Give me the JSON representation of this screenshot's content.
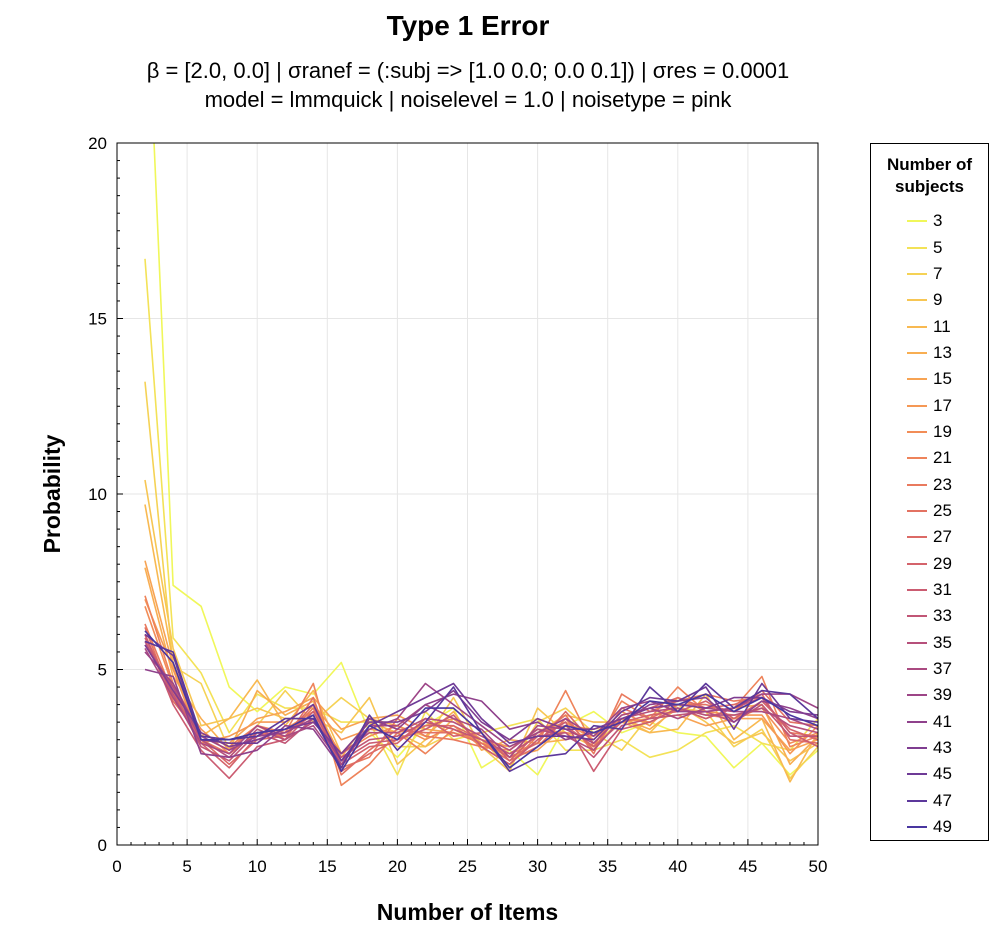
{
  "chart_data": {
    "type": "line",
    "title": "Type 1 Error",
    "subtitle_lines": [
      "β = [2.0, 0.0]   |   σranef = (:subj => [1.0 0.0; 0.0 0.1])   |   σres = 0.0001",
      "model = lmmquick   |   noiselevel = 1.0   |   noisetype = pink"
    ],
    "xlabel": "Number of Items",
    "ylabel": "Probability",
    "xlim": [
      0,
      50
    ],
    "ylim": [
      0,
      20
    ],
    "xticks": [
      0,
      5,
      10,
      15,
      20,
      25,
      30,
      35,
      40,
      45,
      50
    ],
    "yticks": [
      0,
      5,
      10,
      15,
      20
    ],
    "grid": true,
    "legend_title": "Number of subjects",
    "legend_position": "right",
    "x": [
      2,
      4,
      6,
      8,
      10,
      12,
      14,
      16,
      18,
      20,
      22,
      24,
      26,
      28,
      30,
      32,
      34,
      36,
      38,
      40,
      42,
      44,
      46,
      48,
      50
    ],
    "series": [
      {
        "name": "3",
        "color": "#f0f75a",
        "values": [
          26.0,
          7.4,
          6.8,
          4.5,
          3.8,
          4.5,
          4.3,
          5.2,
          3.2,
          2.5,
          3.4,
          3.9,
          2.2,
          2.7,
          2.0,
          3.4,
          3.8,
          3.2,
          3.5,
          3.2,
          3.1,
          2.2,
          2.9,
          2.0,
          2.7
        ]
      },
      {
        "name": "5",
        "color": "#f3e257",
        "values": [
          16.7,
          5.9,
          4.9,
          3.2,
          4.3,
          3.9,
          3.9,
          3.5,
          3.5,
          2.0,
          3.8,
          3.0,
          3.2,
          3.4,
          3.6,
          2.7,
          2.7,
          3.0,
          2.5,
          2.7,
          3.2,
          3.4,
          2.9,
          2.7,
          3.6
        ]
      },
      {
        "name": "7",
        "color": "#f5d255",
        "values": [
          13.2,
          5.1,
          4.6,
          2.7,
          3.4,
          4.4,
          3.5,
          4.2,
          3.6,
          2.8,
          2.8,
          3.2,
          3.0,
          2.2,
          3.5,
          3.9,
          3.2,
          2.7,
          3.7,
          3.9,
          3.8,
          2.8,
          3.3,
          1.9,
          2.8
        ]
      },
      {
        "name": "9",
        "color": "#f7c653",
        "values": [
          10.4,
          5.6,
          3.4,
          3.6,
          3.9,
          3.6,
          3.6,
          3.2,
          4.2,
          2.3,
          3.0,
          4.2,
          2.8,
          2.1,
          3.9,
          3.2,
          2.8,
          3.6,
          3.2,
          4.0,
          3.5,
          2.9,
          3.2,
          2.4,
          2.9
        ]
      },
      {
        "name": "11",
        "color": "#f8b951",
        "values": [
          9.7,
          5.2,
          3.1,
          3.6,
          4.7,
          3.4,
          4.4,
          2.6,
          3.5,
          3.2,
          2.8,
          3.6,
          2.9,
          2.8,
          3.2,
          3.7,
          3.5,
          3.5,
          3.2,
          3.3,
          4.3,
          3.0,
          3.6,
          1.8,
          3.2
        ]
      },
      {
        "name": "13",
        "color": "#f8ae52",
        "values": [
          7.9,
          4.8,
          3.6,
          2.7,
          4.4,
          3.7,
          4.1,
          2.5,
          3.6,
          3.4,
          3.1,
          3.8,
          2.7,
          3.0,
          2.9,
          3.0,
          3.2,
          3.6,
          3.3,
          3.9,
          3.6,
          3.9,
          4.0,
          2.3,
          3.1
        ]
      },
      {
        "name": "15",
        "color": "#f7a353",
        "values": [
          8.1,
          5.1,
          3.0,
          2.9,
          3.6,
          3.8,
          4.2,
          3.3,
          3.6,
          3.7,
          3.3,
          3.2,
          2.9,
          2.5,
          2.7,
          3.4,
          3.3,
          3.5,
          3.6,
          3.7,
          3.4,
          3.6,
          3.6,
          2.7,
          3.0
        ]
      },
      {
        "name": "17",
        "color": "#f59855",
        "values": [
          7.0,
          5.0,
          2.9,
          3.1,
          3.5,
          3.5,
          4.0,
          3.0,
          3.3,
          3.2,
          3.4,
          3.6,
          3.0,
          2.8,
          3.2,
          3.5,
          3.0,
          3.8,
          3.4,
          4.2,
          3.8,
          3.7,
          3.7,
          2.6,
          3.4
        ]
      },
      {
        "name": "19",
        "color": "#f28d57",
        "values": [
          6.8,
          4.5,
          3.3,
          2.6,
          3.2,
          3.3,
          3.8,
          2.6,
          3.1,
          3.4,
          3.0,
          3.4,
          2.8,
          2.7,
          3.3,
          3.2,
          3.1,
          3.6,
          3.5,
          3.9,
          3.7,
          3.6,
          3.9,
          2.9,
          3.2
        ]
      },
      {
        "name": "21",
        "color": "#ee835a",
        "values": [
          7.1,
          4.6,
          3.2,
          2.8,
          3.4,
          3.2,
          4.6,
          1.7,
          2.3,
          3.2,
          2.6,
          3.3,
          2.9,
          2.6,
          2.9,
          4.4,
          2.8,
          4.1,
          3.6,
          4.5,
          3.8,
          3.9,
          4.8,
          2.8,
          3.1
        ]
      },
      {
        "name": "23",
        "color": "#e97a5e",
        "values": [
          6.3,
          4.3,
          3.0,
          2.6,
          3.2,
          3.1,
          3.9,
          2.2,
          2.5,
          3.6,
          3.1,
          3.0,
          2.8,
          2.3,
          3.1,
          3.7,
          2.6,
          4.3,
          3.8,
          4.1,
          4.3,
          4.1,
          4.2,
          3.2,
          3.1
        ]
      },
      {
        "name": "25",
        "color": "#e37262",
        "values": [
          6.2,
          4.1,
          3.1,
          2.7,
          3.4,
          3.0,
          4.2,
          2.0,
          2.7,
          3.3,
          3.2,
          3.2,
          2.9,
          2.4,
          2.8,
          3.6,
          2.7,
          3.9,
          3.6,
          4.0,
          4.0,
          3.8,
          4.4,
          3.5,
          3.4
        ]
      },
      {
        "name": "27",
        "color": "#dc6a66",
        "values": [
          6.0,
          4.2,
          3.0,
          2.3,
          3.0,
          3.1,
          4.0,
          2.1,
          2.6,
          3.0,
          3.4,
          3.4,
          3.0,
          2.5,
          2.9,
          3.8,
          2.9,
          3.7,
          3.9,
          4.2,
          3.9,
          4.0,
          4.3,
          3.0,
          2.9
        ]
      },
      {
        "name": "29",
        "color": "#d4636b",
        "values": [
          5.9,
          4.4,
          2.9,
          2.2,
          3.1,
          3.2,
          3.7,
          2.3,
          2.8,
          2.9,
          3.6,
          3.1,
          3.2,
          2.4,
          3.2,
          3.4,
          2.8,
          3.5,
          3.7,
          3.8,
          4.1,
          3.6,
          4.1,
          3.3,
          3.0
        ]
      },
      {
        "name": "31",
        "color": "#cb5c71",
        "values": [
          6.0,
          4.0,
          2.7,
          1.9,
          2.8,
          3.0,
          3.8,
          2.4,
          2.9,
          3.0,
          3.3,
          3.7,
          2.8,
          2.3,
          3.0,
          3.5,
          2.1,
          3.3,
          3.5,
          3.9,
          3.6,
          3.9,
          4.2,
          3.2,
          2.8
        ]
      },
      {
        "name": "33",
        "color": "#c15676",
        "values": [
          5.8,
          4.3,
          2.8,
          2.4,
          3.2,
          2.9,
          3.6,
          2.5,
          3.0,
          3.1,
          3.5,
          3.3,
          3.0,
          2.6,
          3.1,
          3.2,
          2.5,
          3.4,
          3.6,
          3.7,
          3.8,
          3.5,
          4.0,
          3.1,
          3.1
        ]
      },
      {
        "name": "35",
        "color": "#b6507b",
        "values": [
          5.7,
          4.5,
          3.0,
          2.5,
          3.3,
          3.0,
          3.5,
          2.6,
          3.2,
          3.2,
          3.6,
          3.5,
          3.1,
          2.7,
          3.3,
          3.1,
          2.7,
          3.6,
          3.8,
          3.9,
          3.7,
          3.7,
          3.9,
          3.4,
          3.2
        ]
      },
      {
        "name": "37",
        "color": "#aa4a81",
        "values": [
          5.6,
          4.2,
          2.9,
          2.6,
          3.4,
          3.1,
          3.4,
          2.3,
          3.4,
          3.4,
          4.0,
          3.6,
          3.3,
          2.5,
          3.4,
          3.3,
          2.9,
          3.7,
          3.9,
          3.6,
          3.9,
          3.8,
          3.8,
          3.6,
          3.3
        ]
      },
      {
        "name": "39",
        "color": "#9d4587",
        "values": [
          5.5,
          4.6,
          3.1,
          2.7,
          3.1,
          3.2,
          3.6,
          2.4,
          3.3,
          3.6,
          4.6,
          4.0,
          3.4,
          2.8,
          3.2,
          3.6,
          3.1,
          3.9,
          4.1,
          3.8,
          3.8,
          3.9,
          4.3,
          4.3,
          3.9
        ]
      },
      {
        "name": "41",
        "color": "#8f418c",
        "values": [
          5.0,
          4.8,
          2.6,
          2.5,
          2.7,
          3.4,
          3.3,
          2.2,
          3.6,
          3.3,
          4.0,
          4.3,
          4.1,
          3.3,
          3.5,
          3.0,
          3.2,
          3.5,
          4.0,
          4.1,
          4.2,
          3.5,
          4.1,
          3.9,
          3.6
        ]
      },
      {
        "name": "43",
        "color": "#7f3d91",
        "values": [
          5.7,
          4.4,
          3.2,
          2.8,
          3.0,
          3.3,
          3.5,
          2.6,
          3.5,
          3.5,
          3.8,
          4.4,
          3.5,
          3.0,
          3.6,
          3.3,
          3.3,
          3.6,
          3.9,
          4.0,
          3.9,
          4.2,
          4.2,
          3.8,
          3.7
        ]
      },
      {
        "name": "45",
        "color": "#6e3a96",
        "values": [
          6.0,
          5.4,
          3.0,
          2.9,
          2.9,
          3.5,
          4.0,
          2.4,
          3.4,
          3.8,
          4.2,
          4.6,
          3.6,
          2.9,
          3.1,
          3.1,
          3.0,
          3.8,
          4.2,
          4.1,
          4.5,
          3.3,
          4.6,
          3.6,
          3.5
        ]
      },
      {
        "name": "47",
        "color": "#5c389b",
        "values": [
          5.8,
          5.5,
          3.1,
          3.0,
          3.1,
          3.6,
          3.6,
          2.2,
          3.7,
          2.7,
          3.5,
          4.5,
          3.2,
          2.1,
          2.5,
          2.6,
          3.4,
          3.3,
          4.5,
          3.8,
          4.6,
          3.9,
          4.4,
          4.3,
          3.6
        ]
      },
      {
        "name": "49",
        "color": "#4936a0",
        "values": [
          6.1,
          5.2,
          3.0,
          3.0,
          3.2,
          3.3,
          3.7,
          2.1,
          3.4,
          3.0,
          3.9,
          3.9,
          3.2,
          2.2,
          2.8,
          3.4,
          3.2,
          3.5,
          4.1,
          4.0,
          4.3,
          3.8,
          4.2,
          3.7,
          3.4
        ]
      }
    ]
  }
}
